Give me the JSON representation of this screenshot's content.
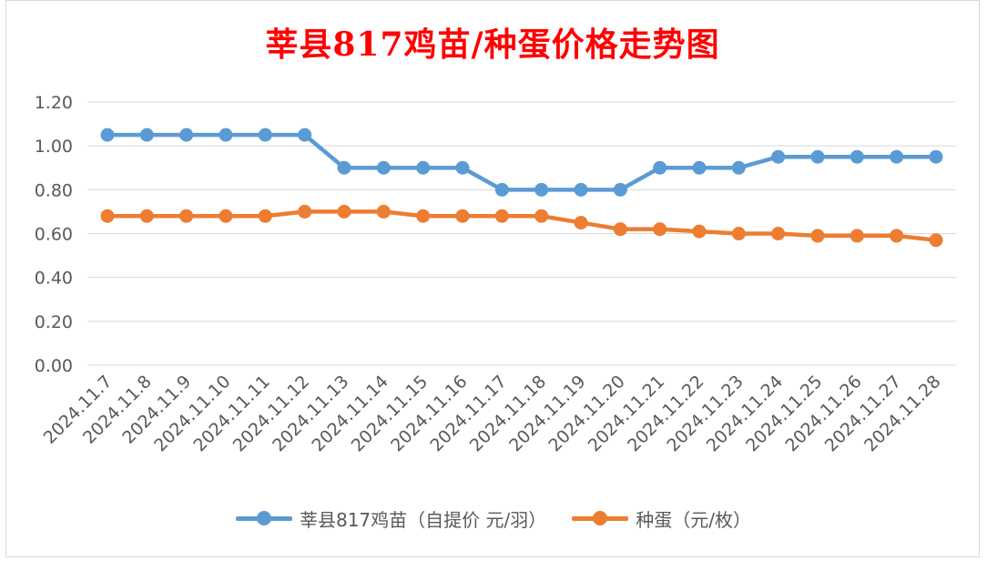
{
  "chart_data": {
    "type": "line",
    "title": "莘县817鸡苗/种蛋价格走势图",
    "xlabel": "",
    "ylabel": "",
    "ylim": [
      0,
      1.2
    ],
    "yticks": [
      "0.00",
      "0.20",
      "0.40",
      "0.60",
      "0.80",
      "1.00",
      "1.20"
    ],
    "grid": true,
    "legend_position": "bottom",
    "categories": [
      "2024.11.7",
      "2024.11.8",
      "2024.11.9",
      "2024.11.10",
      "2024.11.11",
      "2024.11.12",
      "2024.11.13",
      "2024.11.14",
      "2024.11.15",
      "2024.11.16",
      "2024.11.17",
      "2024.11.18",
      "2024.11.19",
      "2024.11.20",
      "2024.11.21",
      "2024.11.22",
      "2024.11.23",
      "2024.11.24",
      "2024.11.25",
      "2024.11.26",
      "2024.11.27",
      "2024.11.28"
    ],
    "series": [
      {
        "name": "莘县817鸡苗（自提价 元/羽）",
        "color": "#5b9bd5",
        "values": [
          1.05,
          1.05,
          1.05,
          1.05,
          1.05,
          1.05,
          0.9,
          0.9,
          0.9,
          0.9,
          0.8,
          0.8,
          0.8,
          0.8,
          0.9,
          0.9,
          0.9,
          0.95,
          0.95,
          0.95,
          0.95,
          0.95
        ]
      },
      {
        "name": "种蛋（元/枚）",
        "color": "#ed7d31",
        "values": [
          0.68,
          0.68,
          0.68,
          0.68,
          0.68,
          0.7,
          0.7,
          0.7,
          0.68,
          0.68,
          0.68,
          0.68,
          0.65,
          0.62,
          0.62,
          0.61,
          0.6,
          0.6,
          0.59,
          0.59,
          0.59,
          0.57
        ]
      }
    ]
  }
}
